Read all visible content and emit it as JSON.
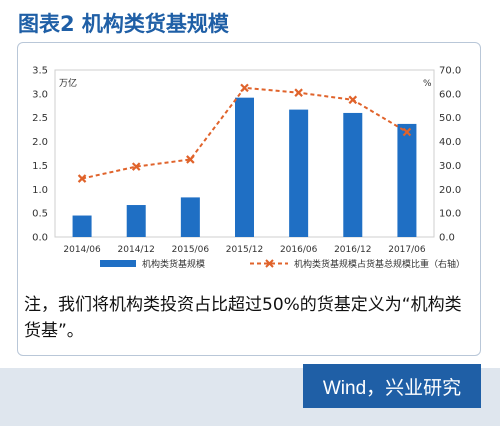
{
  "header": {
    "title": "图表2  机构类货基规模"
  },
  "note": {
    "text": "注，我们将机构类投资占比超过50%的货基定义为“机构类货基”。"
  },
  "brand": {
    "text": "Wind，兴业研究"
  },
  "chart_data": {
    "type": "bar",
    "categories": [
      "2014/06",
      "2014/12",
      "2015/06",
      "2015/12",
      "2016/06",
      "2016/12",
      "2017/06"
    ],
    "series": [
      {
        "name": "机构类货基规模",
        "type": "bar",
        "axis": "left",
        "color": "#1f6fc4",
        "values": [
          0.45,
          0.67,
          0.83,
          2.92,
          2.67,
          2.6,
          2.37
        ]
      },
      {
        "name": "机构类货基规模占货基总规模比重（右轴）",
        "type": "line",
        "axis": "right",
        "color": "#e0632b",
        "values": [
          24.5,
          29.5,
          32.5,
          62.5,
          60.5,
          57.5,
          44.0
        ]
      }
    ],
    "left_axis": {
      "unit": "万亿",
      "ylim": [
        0,
        3.5
      ],
      "ticks": [
        "0.0",
        "0.5",
        "1.0",
        "1.5",
        "2.0",
        "2.5",
        "3.0",
        "3.5"
      ]
    },
    "right_axis": {
      "unit": "%",
      "ylim": [
        0,
        70
      ],
      "ticks": [
        "0.0",
        "10.0",
        "20.0",
        "30.0",
        "40.0",
        "50.0",
        "60.0",
        "70.0"
      ]
    },
    "legend": "bottom"
  }
}
